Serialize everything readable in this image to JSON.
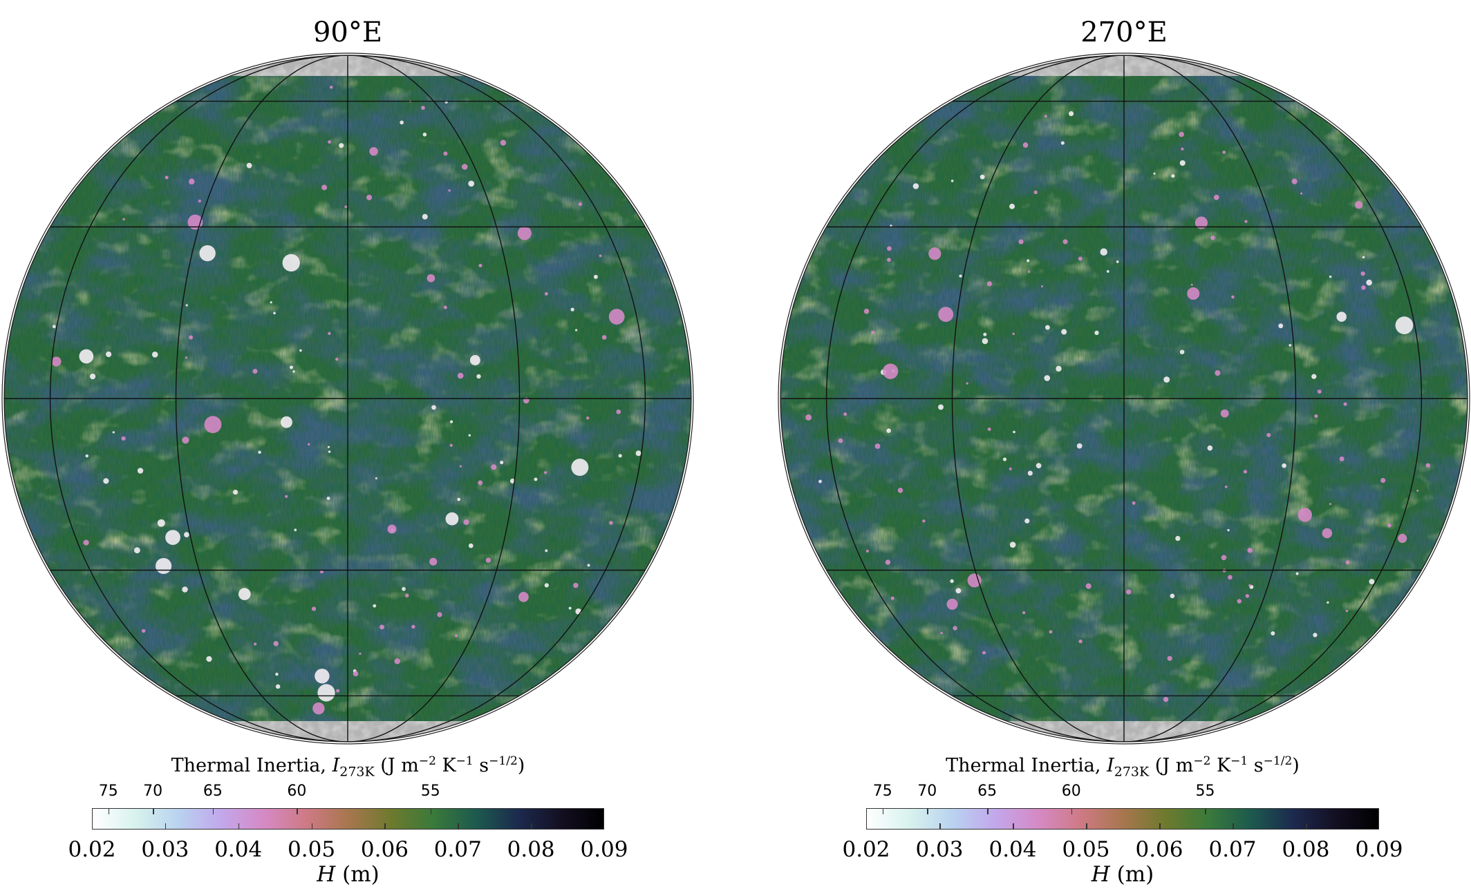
{
  "panels": [
    {
      "title": "90°E",
      "center_longitude": 90
    },
    {
      "title": "270°E",
      "center_longitude": 270
    }
  ],
  "map": {
    "projection": "orthographic",
    "graticule_latitudes": [
      -60,
      -30,
      0,
      30,
      60
    ],
    "graticule_longitude_step": 30,
    "polar_mask_latitude": 70,
    "polar_mask_color": "#b4b4b4",
    "dominant_color": "#2f6b3a"
  },
  "colorbar": {
    "title_prefix": "Thermal Inertia, ",
    "title_var": "I",
    "title_sub": "273K",
    "title_units_open": " (J m",
    "exp1": "−2",
    "mid1": " K",
    "exp2": "−1",
    "mid2": " s",
    "exp3": "−1/2",
    "title_units_close": ")",
    "top_ticks": [
      {
        "label": "75",
        "pos": 0.032
      },
      {
        "label": "70",
        "pos": 0.119
      },
      {
        "label": "65",
        "pos": 0.236
      },
      {
        "label": "60",
        "pos": 0.4
      },
      {
        "label": "55",
        "pos": 0.661
      }
    ],
    "bottom_ticks": [
      "0.02",
      "0.03",
      "0.04",
      "0.05",
      "0.06",
      "0.07",
      "0.08",
      "0.09"
    ],
    "range": [
      0.02,
      0.09
    ],
    "label_var": "H",
    "label_units": " (m)",
    "colormap": [
      "#ffffff",
      "#d8f2ee",
      "#b9d3f0",
      "#c2a8ec",
      "#d58ac6",
      "#cf7a86",
      "#a8764e",
      "#6e7a2e",
      "#3a7a3a",
      "#1d5a4e",
      "#1c2a4e",
      "#140f22",
      "#000000"
    ]
  }
}
